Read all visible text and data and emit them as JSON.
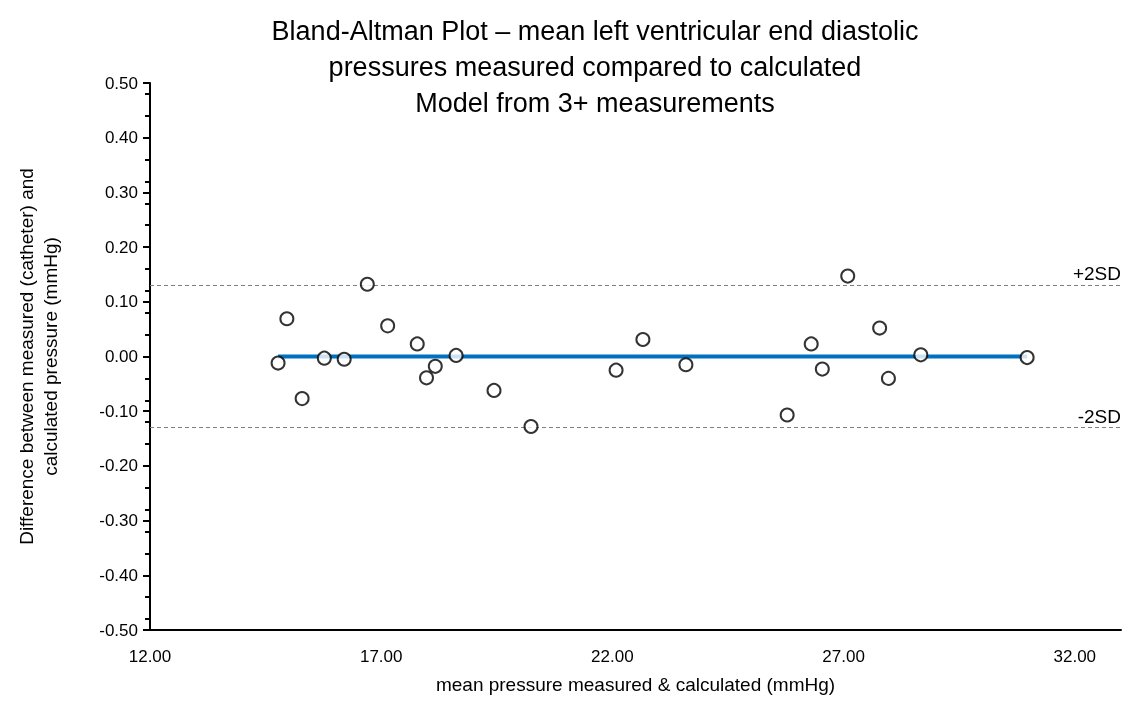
{
  "chart_data": {
    "type": "scatter",
    "title": "Bland-Altman Plot – mean left ventricular end diastolic\npressures measured compared to calculated\nModel from 3+ measurements",
    "xlabel": "mean pressure measured & calculated (mmHg)",
    "ylabel": "Difference between measured (catheter) and\ncalculated pressure (mmHg)",
    "series": [
      {
        "color": "#000000",
        "marker": "circle",
        "x": [
          14.77,
          14.96,
          15.29,
          15.77,
          16.2,
          16.7,
          17.14,
          17.78,
          17.98,
          18.17,
          18.62,
          19.44,
          20.24,
          22.08,
          22.66,
          23.59,
          25.78,
          26.3,
          26.54,
          27.09,
          27.78,
          27.97,
          28.67,
          30.97
        ],
        "values": [
          -0.012,
          0.069,
          -0.077,
          -0.003,
          -0.005,
          0.132,
          0.056,
          0.023,
          -0.039,
          -0.018,
          0.002,
          -0.062,
          -0.128,
          -0.025,
          0.031,
          -0.015,
          -0.107,
          0.023,
          -0.023,
          0.147,
          0.052,
          -0.04,
          0.003,
          -0.002
        ]
      },
      {
        "type": "line",
        "color": "#0070c0",
        "marker": "none",
        "line_style": "solid",
        "x": [
          14.77,
          30.97
        ],
        "values": [
          0,
          0
        ]
      }
    ],
    "ref_lines": [
      {
        "axis": "y",
        "value": 0.133,
        "label": "+2SD",
        "color": "#7f7f7f",
        "line_style": "dashed"
      },
      {
        "axis": "y",
        "value": -0.133,
        "label": "-2SD",
        "color": "#7f7f7f",
        "line_style": "dashed"
      }
    ],
    "xlim": [
      12,
      33
    ],
    "xticks": [
      {
        "value": 12,
        "label": "12.00"
      },
      {
        "value": 17,
        "label": "17.00"
      },
      {
        "value": 22,
        "label": "22.00"
      },
      {
        "value": 27,
        "label": "27.00"
      },
      {
        "value": 32,
        "label": "32.00"
      }
    ],
    "ylim": [
      -0.5,
      0.5
    ],
    "yticks": [
      {
        "value": -0.5,
        "label": "-0.50"
      },
      {
        "value": -0.4,
        "label": "-0.40"
      },
      {
        "value": -0.3,
        "label": "-0.30"
      },
      {
        "value": -0.2,
        "label": "-0.20"
      },
      {
        "value": -0.1,
        "label": "-0.10"
      },
      {
        "value": 0,
        "label": "0.00"
      },
      {
        "value": 0.1,
        "label": "0.10"
      },
      {
        "value": 0.2,
        "label": "0.20"
      },
      {
        "value": 0.3,
        "label": "0.30"
      },
      {
        "value": 0.4,
        "label": "0.40"
      },
      {
        "value": 0.5,
        "label": "0.50"
      }
    ],
    "grid": false
  }
}
